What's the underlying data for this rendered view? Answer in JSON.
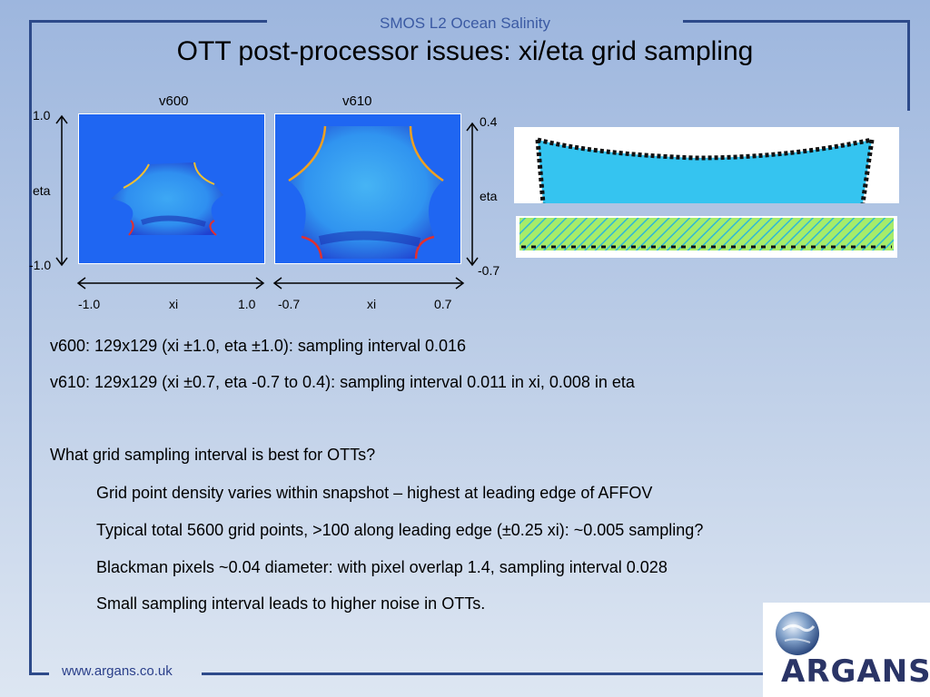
{
  "header": {
    "subtitle": "SMOS L2 Ocean Salinity"
  },
  "title": "OTT post-processor issues: xi/eta grid sampling",
  "figure": {
    "plot_v600_label": "v600",
    "plot_v610_label": "v610",
    "left_axis": {
      "top": "1.0",
      "mid": "eta",
      "bottom": "-1.0"
    },
    "right_axis": {
      "top": "0.4",
      "mid": "eta",
      "bottom": "-0.7"
    },
    "xaxis_v600": {
      "left": "-1.0",
      "mid": "xi",
      "right": "1.0"
    },
    "xaxis_v610": {
      "left": "-0.7",
      "mid": "xi",
      "right": "0.7"
    }
  },
  "body": {
    "line1": "v600: 129x129 (xi ±1.0, eta ±1.0): sampling interval 0.016",
    "line2": "v610: 129x129 (xi ±0.7, eta -0.7 to 0.4): sampling interval 0.011 in xi, 0.008 in eta",
    "question": "What grid sampling interval is best for OTTs?",
    "bullets": [
      "Grid point density varies within snapshot – highest at leading edge of AFFOV",
      "Typical total 5600 grid points, >100 along leading edge (±0.25 xi): ~0.005 sampling?",
      "Blackman pixels ~0.04 diameter: with pixel overlap 1.4, sampling interval 0.028",
      "Small sampling interval leads to higher noise in OTTs."
    ]
  },
  "footer": {
    "url": "www.argans.co.uk",
    "logo": "ARGANS"
  },
  "colors": {
    "frame": "#2d4a8a",
    "plot_bg": "#1f66f2",
    "hex_fill": "#29b8ee"
  }
}
